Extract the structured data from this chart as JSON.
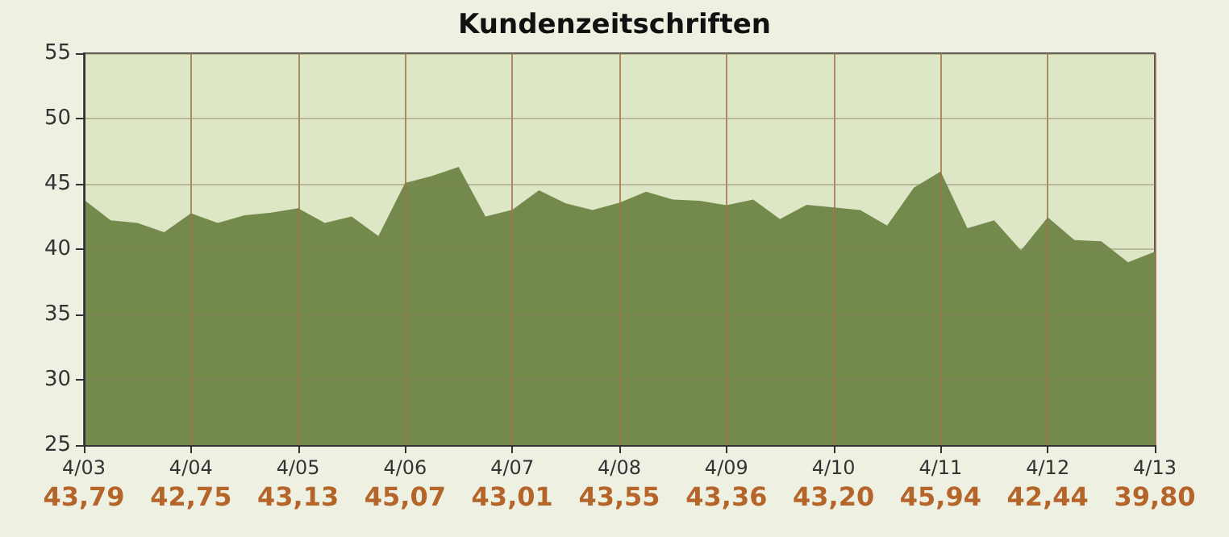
{
  "chart_data": {
    "type": "area",
    "title": "Kundenzeitschriften",
    "categories": [
      "4/03",
      null,
      null,
      null,
      "4/04",
      null,
      null,
      null,
      "4/05",
      null,
      null,
      null,
      "4/06",
      null,
      null,
      null,
      "4/07",
      null,
      null,
      null,
      "4/08",
      null,
      null,
      null,
      "4/09",
      null,
      null,
      null,
      "4/10",
      null,
      null,
      null,
      "4/11",
      null,
      null,
      null,
      "4/12",
      null,
      null,
      null,
      "4/13"
    ],
    "series": [
      {
        "color": "#748a4d",
        "values": [
          43.79,
          42.2,
          42.0,
          41.3,
          42.75,
          42.0,
          42.6,
          42.8,
          43.13,
          42.0,
          42.5,
          41.0,
          45.07,
          45.6,
          46.3,
          42.5,
          43.01,
          44.5,
          43.5,
          43.0,
          43.55,
          44.4,
          43.8,
          43.7,
          43.36,
          43.8,
          42.3,
          43.4,
          43.2,
          43.0,
          41.8,
          44.7,
          45.94,
          41.6,
          42.2,
          39.9,
          42.44,
          40.7,
          40.6,
          39.0,
          39.8
        ],
        "value_labels": [
          "43,79",
          null,
          null,
          null,
          "42,75",
          null,
          null,
          null,
          "43,13",
          null,
          null,
          null,
          "45,07",
          null,
          null,
          null,
          "43,01",
          null,
          null,
          null,
          "43,55",
          null,
          null,
          null,
          "43,36",
          null,
          null,
          null,
          "43,20",
          null,
          null,
          null,
          "45,94",
          null,
          null,
          null,
          "42,44",
          null,
          null,
          null,
          "39,80"
        ]
      }
    ],
    "ylim": [
      25,
      55
    ],
    "yticks": [
      25,
      30,
      35,
      40,
      45,
      50,
      55
    ],
    "grid": true
  }
}
